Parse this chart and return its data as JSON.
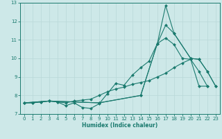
{
  "title": "",
  "xlabel": "Humidex (Indice chaleur)",
  "ylabel": "",
  "xlim": [
    -0.5,
    23.5
  ],
  "ylim": [
    7,
    13
  ],
  "yticks": [
    7,
    8,
    9,
    10,
    11,
    12,
    13
  ],
  "xticks": [
    0,
    1,
    2,
    3,
    4,
    5,
    6,
    7,
    8,
    9,
    10,
    11,
    12,
    13,
    14,
    15,
    16,
    17,
    18,
    19,
    20,
    21,
    22,
    23
  ],
  "bg_color": "#cde8e8",
  "line_color": "#1a7a6e",
  "grid_color": "#b8d8d8",
  "line1_x": [
    0,
    1,
    2,
    3,
    4,
    5,
    6,
    7,
    8,
    9,
    10,
    11,
    12,
    13,
    14,
    15,
    16,
    17,
    18,
    19,
    20,
    21,
    22
  ],
  "line1_y": [
    7.6,
    7.6,
    7.65,
    7.7,
    7.65,
    7.45,
    7.6,
    7.35,
    7.3,
    7.55,
    8.1,
    8.65,
    8.55,
    9.1,
    9.5,
    9.85,
    10.8,
    11.1,
    10.75,
    10.0,
    9.95,
    9.3,
    8.5
  ],
  "line2_x": [
    0,
    1,
    2,
    3,
    4,
    5,
    6,
    7,
    8,
    9,
    10,
    11,
    12,
    13,
    14,
    15,
    16,
    17,
    18,
    19,
    20,
    21,
    22
  ],
  "line2_y": [
    7.6,
    7.6,
    7.65,
    7.7,
    7.65,
    7.6,
    7.7,
    7.75,
    7.8,
    8.0,
    8.2,
    8.35,
    8.45,
    8.6,
    8.7,
    8.8,
    9.0,
    9.2,
    9.5,
    9.75,
    9.95,
    8.5,
    8.5
  ],
  "line3_x": [
    0,
    3,
    9,
    14,
    16,
    17,
    18,
    20,
    21,
    22,
    23
  ],
  "line3_y": [
    7.6,
    7.7,
    7.6,
    8.0,
    10.8,
    11.8,
    11.35,
    10.0,
    9.95,
    9.3,
    8.5
  ],
  "line4_x": [
    0,
    3,
    9,
    14,
    16,
    17,
    18,
    20,
    21,
    22,
    23
  ],
  "line4_y": [
    7.6,
    7.7,
    7.6,
    8.0,
    10.8,
    12.85,
    11.35,
    10.0,
    9.95,
    9.3,
    8.5
  ]
}
